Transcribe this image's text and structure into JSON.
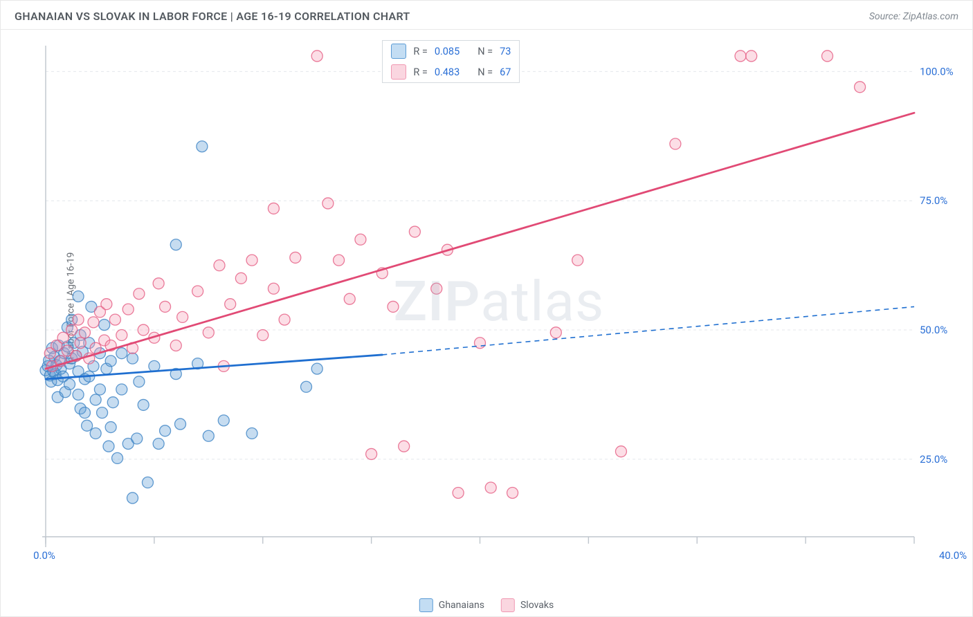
{
  "header": {
    "title": "GHANAIAN VS SLOVAK IN LABOR FORCE | AGE 16-19 CORRELATION CHART",
    "source": "Source: ZipAtlas.com"
  },
  "watermark": {
    "zip": "ZIP",
    "atlas": "atlas"
  },
  "y_axis_label": "In Labor Force | Age 16-19",
  "chart": {
    "type": "scatter",
    "background_color": "#ffffff",
    "grid_color": "#e4e7eb",
    "axis_color": "#bfc6cd",
    "xlim": [
      0,
      40
    ],
    "ylim": [
      10,
      105
    ],
    "x_ticks": [
      0,
      5,
      10,
      15,
      20,
      25,
      30,
      35,
      40
    ],
    "x_tick_labels": [
      "0.0%",
      "",
      "",
      "",
      "",
      "",
      "",
      "",
      "40.0%"
    ],
    "y_ticks": [
      25,
      50,
      75,
      100
    ],
    "y_tick_labels": [
      "25.0%",
      "50.0%",
      "75.0%",
      "100.0%"
    ],
    "marker_radius": 8,
    "marker_fill_opacity": 0.35,
    "marker_stroke_opacity": 0.8,
    "marker_stroke_width": 1.3,
    "series": [
      {
        "name": "Ghanaians",
        "color_fill": "#5b9bd5",
        "color_stroke": "#3b82c4",
        "r_value": "0.085",
        "n_value": "73",
        "trend": {
          "x1": 0,
          "y1": 40.5,
          "x2_solid": 15.5,
          "y2_solid": 45.2,
          "x2_dash": 40,
          "y2_dash": 54.5,
          "color": "#1f6fd0",
          "width": 2.8
        },
        "points": [
          [
            0.0,
            42.2
          ],
          [
            0.1,
            43.0
          ],
          [
            0.15,
            44.1
          ],
          [
            0.2,
            41.2
          ],
          [
            0.25,
            40.0
          ],
          [
            0.3,
            46.5
          ],
          [
            0.35,
            42.0
          ],
          [
            0.4,
            44.8
          ],
          [
            0.45,
            41.5
          ],
          [
            0.5,
            43.2
          ],
          [
            0.55,
            40.3
          ],
          [
            0.55,
            37.0
          ],
          [
            0.6,
            47.0
          ],
          [
            0.65,
            44.0
          ],
          [
            0.7,
            42.5
          ],
          [
            0.8,
            41.0
          ],
          [
            0.85,
            45.5
          ],
          [
            0.9,
            38.0
          ],
          [
            1.0,
            46.8
          ],
          [
            1.0,
            50.5
          ],
          [
            1.1,
            43.5
          ],
          [
            1.1,
            39.5
          ],
          [
            1.2,
            44.5
          ],
          [
            1.2,
            52.0
          ],
          [
            1.3,
            47.5
          ],
          [
            1.4,
            45.0
          ],
          [
            1.5,
            42.0
          ],
          [
            1.5,
            37.5
          ],
          [
            1.5,
            56.5
          ],
          [
            1.6,
            49.0
          ],
          [
            1.6,
            34.8
          ],
          [
            1.7,
            45.8
          ],
          [
            1.8,
            40.5
          ],
          [
            1.8,
            34.0
          ],
          [
            1.9,
            31.5
          ],
          [
            2.0,
            47.5
          ],
          [
            2.0,
            41.0
          ],
          [
            2.1,
            54.5
          ],
          [
            2.2,
            43.0
          ],
          [
            2.3,
            36.5
          ],
          [
            2.3,
            30.0
          ],
          [
            2.5,
            45.5
          ],
          [
            2.5,
            38.5
          ],
          [
            2.6,
            34.0
          ],
          [
            2.7,
            51.0
          ],
          [
            2.8,
            42.5
          ],
          [
            2.9,
            27.5
          ],
          [
            3.0,
            44.0
          ],
          [
            3.0,
            31.2
          ],
          [
            3.1,
            36.0
          ],
          [
            3.3,
            25.2
          ],
          [
            3.5,
            45.5
          ],
          [
            3.5,
            38.5
          ],
          [
            3.8,
            28.0
          ],
          [
            4.0,
            44.5
          ],
          [
            4.0,
            17.5
          ],
          [
            4.2,
            29.0
          ],
          [
            4.3,
            40.0
          ],
          [
            4.5,
            35.5
          ],
          [
            4.7,
            20.5
          ],
          [
            5.0,
            43.0
          ],
          [
            5.2,
            28.0
          ],
          [
            5.5,
            30.5
          ],
          [
            6.0,
            66.5
          ],
          [
            6.0,
            41.5
          ],
          [
            6.2,
            31.8
          ],
          [
            7.0,
            43.5
          ],
          [
            7.2,
            85.5
          ],
          [
            7.5,
            29.5
          ],
          [
            8.2,
            32.5
          ],
          [
            9.5,
            30.0
          ],
          [
            12.0,
            39.0
          ],
          [
            12.5,
            42.5
          ]
        ]
      },
      {
        "name": "Slovaks",
        "color_fill": "#f5a1b8",
        "color_stroke": "#e55b82",
        "r_value": "0.483",
        "n_value": "67",
        "trend": {
          "x1": 0,
          "y1": 42.5,
          "x2_solid": 40,
          "y2_solid": 92.0,
          "x2_dash": 40,
          "y2_dash": 92.0,
          "color": "#e14a75",
          "width": 2.8
        },
        "points": [
          [
            0.2,
            45.5
          ],
          [
            0.3,
            43.0
          ],
          [
            0.5,
            47.0
          ],
          [
            0.7,
            44.0
          ],
          [
            0.8,
            48.5
          ],
          [
            1.0,
            46.0
          ],
          [
            1.2,
            50.0
          ],
          [
            1.4,
            45.0
          ],
          [
            1.5,
            52.0
          ],
          [
            1.6,
            47.5
          ],
          [
            1.8,
            49.5
          ],
          [
            2.0,
            44.5
          ],
          [
            2.2,
            51.5
          ],
          [
            2.3,
            46.5
          ],
          [
            2.5,
            53.5
          ],
          [
            2.7,
            48.0
          ],
          [
            2.8,
            55.0
          ],
          [
            3.0,
            47.0
          ],
          [
            3.2,
            52.0
          ],
          [
            3.5,
            49.0
          ],
          [
            3.8,
            54.0
          ],
          [
            4.0,
            46.5
          ],
          [
            4.3,
            57.0
          ],
          [
            4.5,
            50.0
          ],
          [
            5.0,
            48.5
          ],
          [
            5.2,
            59.0
          ],
          [
            5.5,
            54.5
          ],
          [
            6.0,
            47.0
          ],
          [
            6.3,
            52.5
          ],
          [
            7.0,
            57.5
          ],
          [
            7.5,
            49.5
          ],
          [
            8.0,
            62.5
          ],
          [
            8.2,
            43.0
          ],
          [
            8.5,
            55.0
          ],
          [
            9.0,
            60.0
          ],
          [
            9.5,
            63.5
          ],
          [
            10.0,
            49.0
          ],
          [
            10.5,
            58.0
          ],
          [
            10.5,
            73.5
          ],
          [
            11.0,
            52.0
          ],
          [
            11.5,
            64.0
          ],
          [
            12.5,
            103.0
          ],
          [
            13.0,
            74.5
          ],
          [
            13.5,
            63.5
          ],
          [
            14.0,
            56.0
          ],
          [
            14.5,
            67.5
          ],
          [
            15.0,
            26.0
          ],
          [
            15.5,
            61.0
          ],
          [
            16.0,
            54.5
          ],
          [
            16.2,
            103.0
          ],
          [
            16.5,
            27.5
          ],
          [
            17.0,
            69.0
          ],
          [
            18.0,
            58.0
          ],
          [
            18.5,
            65.5
          ],
          [
            18.5,
            103.0
          ],
          [
            19.0,
            18.5
          ],
          [
            20.0,
            47.5
          ],
          [
            20.5,
            19.5
          ],
          [
            21.5,
            18.5
          ],
          [
            23.5,
            49.5
          ],
          [
            24.5,
            63.5
          ],
          [
            26.5,
            26.5
          ],
          [
            29.0,
            86.0
          ],
          [
            32.0,
            103.0
          ],
          [
            32.5,
            103.0
          ],
          [
            36.0,
            103.0
          ],
          [
            37.5,
            97.0
          ]
        ]
      }
    ]
  },
  "top_legend": {
    "rows": [
      {
        "swatch_fill": "#c3ddf3",
        "swatch_stroke": "#5b9bd5",
        "r_label": "R =",
        "r_value": "0.085",
        "n_label": "N =",
        "n_value": "73"
      },
      {
        "swatch_fill": "#fad6e0",
        "swatch_stroke": "#f098b2",
        "r_label": "R =",
        "r_value": "0.483",
        "n_label": "N =",
        "n_value": "67"
      }
    ]
  },
  "bottom_legend": {
    "items": [
      {
        "label": "Ghanaians",
        "fill": "#c3ddf3",
        "stroke": "#5b9bd5"
      },
      {
        "label": "Slovaks",
        "fill": "#fad6e0",
        "stroke": "#f098b2"
      }
    ]
  }
}
